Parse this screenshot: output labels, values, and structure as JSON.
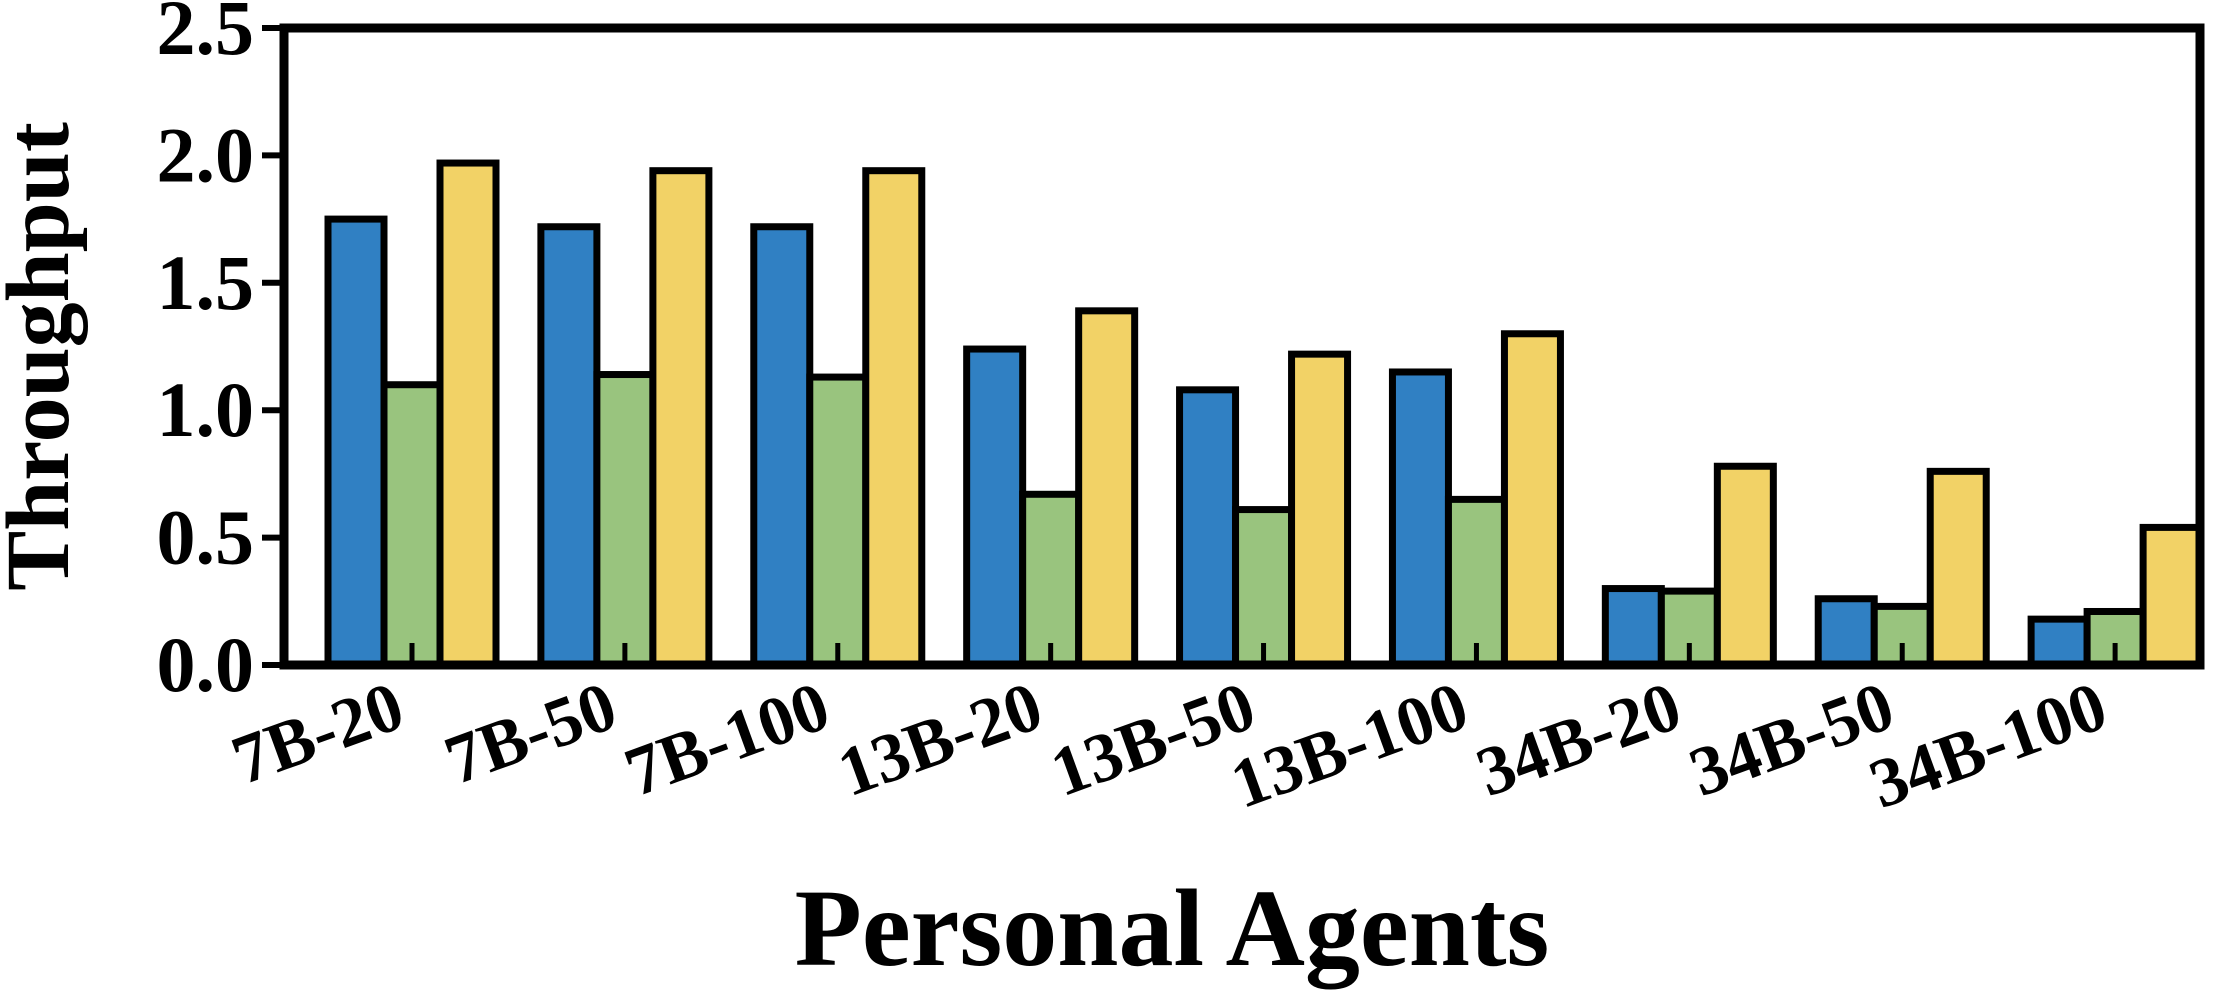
{
  "chart_data": {
    "type": "bar",
    "title": "",
    "xlabel": "Personal Agents",
    "ylabel": "Throughput",
    "ylim": [
      0,
      2.5
    ],
    "yticks": [
      "0.0",
      "0.5",
      "1.0",
      "1.5",
      "2.0",
      "2.5"
    ],
    "grid": false,
    "legend": "none",
    "categories": [
      "7B-20",
      "7B-50",
      "7B-100",
      "13B-20",
      "13B-50",
      "13B-100",
      "34B-20",
      "34B-50",
      "34B-100"
    ],
    "series": [
      {
        "color": "#3080c3",
        "values": [
          1.75,
          1.72,
          1.72,
          1.24,
          1.08,
          1.15,
          0.3,
          0.26,
          0.18
        ]
      },
      {
        "color": "#99c47e",
        "values": [
          1.1,
          1.14,
          1.13,
          0.67,
          0.61,
          0.65,
          0.29,
          0.23,
          0.21
        ]
      },
      {
        "color": "#f2d266",
        "values": [
          1.97,
          1.94,
          1.94,
          1.39,
          1.22,
          1.3,
          0.78,
          0.76,
          0.54
        ]
      }
    ]
  }
}
